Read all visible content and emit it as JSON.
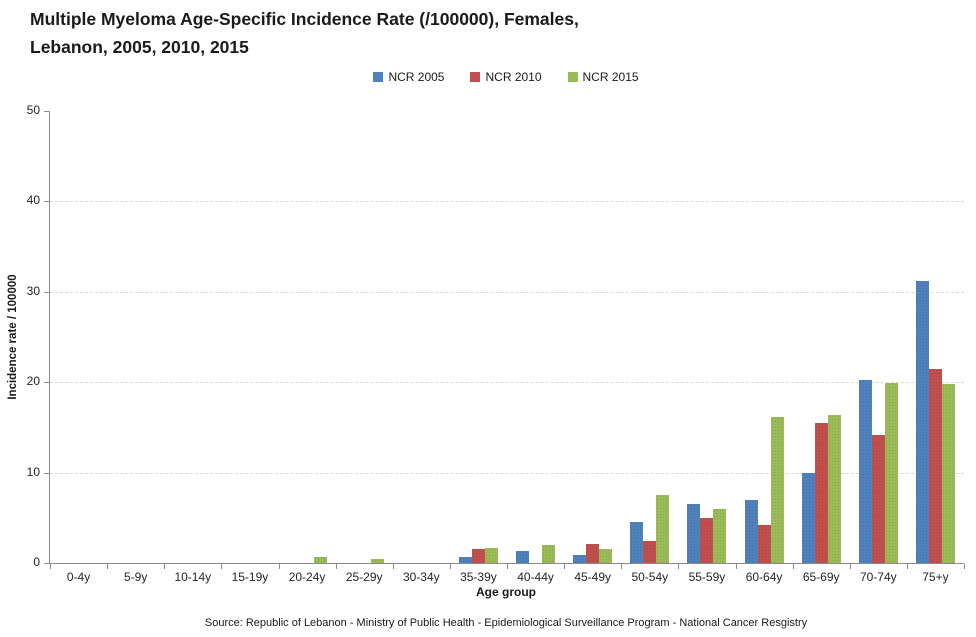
{
  "title": {
    "line1": "Multiple Myeloma Age-Specific Incidence Rate (/100000), Females,",
    "line2": "Lebanon, 2005, 2010, 2015"
  },
  "chart_data": {
    "type": "bar",
    "title": "Multiple Myeloma Age-Specific Incidence Rate (/100000), Females, Lebanon, 2005, 2010, 2015",
    "categories": [
      "0-4y",
      "5-9y",
      "10-14y",
      "15-19y",
      "20-24y",
      "25-29y",
      "30-34y",
      "35-39y",
      "40-44y",
      "45-49y",
      "50-54y",
      "55-59y",
      "60-64y",
      "65-69y",
      "70-74y",
      "75+y"
    ],
    "series": [
      {
        "name": "NCR 2005",
        "color": "#4F81BD",
        "values": [
          0,
          0,
          0,
          0,
          0,
          0,
          0,
          0.7,
          1.3,
          0.9,
          4.5,
          6.5,
          7.0,
          10.0,
          20.3,
          31.2
        ]
      },
      {
        "name": "NCR 2010",
        "color": "#C0504D",
        "values": [
          0,
          0,
          0,
          0,
          0,
          0,
          0,
          1.5,
          0,
          2.1,
          2.4,
          5.0,
          4.2,
          15.5,
          14.2,
          21.5
        ]
      },
      {
        "name": "NCR 2015",
        "color": "#9BBB59",
        "values": [
          0,
          0,
          0,
          0,
          0.7,
          0.4,
          0,
          1.7,
          2.0,
          1.6,
          7.5,
          6.0,
          16.2,
          16.4,
          19.9,
          19.8
        ]
      }
    ],
    "xlabel": "Age group",
    "ylabel": "Incidence rate / 100000",
    "ylim": [
      0,
      50
    ],
    "ytick_interval": 10,
    "grid": "horizontal dashed gridlines at 10, 20, 30, 40",
    "legend_position": "top-center"
  },
  "footer": {
    "source": "Source: Republic of Lebanon - Ministry of Public Health - Epidemiological Surveillance Program - National Cancer Resgistry"
  },
  "colors": {
    "axis": "#8a8a8a",
    "gridline": "#d9d9d9",
    "background": "#ffffff",
    "text": "#1a1a1a"
  }
}
